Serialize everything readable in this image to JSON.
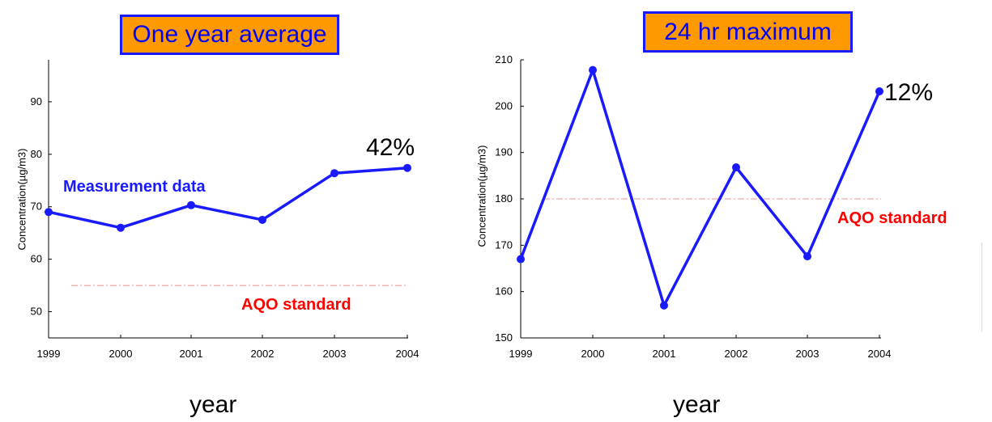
{
  "colors": {
    "series": "#1a1aff",
    "standard_line": "#f4b5b5",
    "standard_text": "#ff0000",
    "title_bg": "#ff9900",
    "title_text": "#0000ff"
  },
  "chart_data": [
    {
      "type": "line",
      "title": "One year average",
      "xlabel": "year",
      "ylabel": "Concentration(µg/m3)",
      "x": [
        "1999",
        "2000",
        "2001",
        "2002",
        "2003",
        "2004"
      ],
      "series": [
        {
          "name": "Measurement data",
          "values": [
            69,
            66,
            70.3,
            67.5,
            76.4,
            77.4
          ]
        }
      ],
      "ylim": [
        45,
        98
      ],
      "yticks": [
        50,
        60,
        70,
        80,
        90
      ],
      "reference_line": {
        "label": "AQO standard",
        "value": 55
      },
      "annotations": [
        "42%"
      ],
      "grid": false
    },
    {
      "type": "line",
      "title": "24 hr maximum",
      "xlabel": "year",
      "ylabel": "Concentration(µg/m3)",
      "x": [
        "1999",
        "2000",
        "2001",
        "2002",
        "2003",
        "2004"
      ],
      "series": [
        {
          "values": [
            167,
            207.8,
            157,
            186.8,
            167.6,
            203.2
          ]
        }
      ],
      "ylim": [
        150,
        210
      ],
      "yticks": [
        150,
        160,
        170,
        180,
        190,
        200,
        210
      ],
      "reference_line": {
        "label": "AQO standard",
        "value": 180
      },
      "annotations": [
        "12%"
      ],
      "grid": false
    }
  ]
}
